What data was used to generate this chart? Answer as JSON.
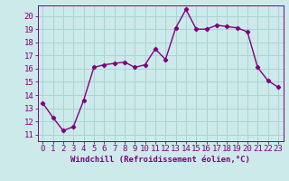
{
  "x": [
    0,
    1,
    2,
    3,
    4,
    5,
    6,
    7,
    8,
    9,
    10,
    11,
    12,
    13,
    14,
    15,
    16,
    17,
    18,
    19,
    20,
    21,
    22,
    23
  ],
  "y": [
    13.4,
    12.3,
    11.3,
    11.6,
    13.6,
    16.1,
    16.3,
    16.4,
    16.5,
    16.1,
    16.3,
    17.5,
    16.7,
    19.1,
    20.5,
    19.0,
    19.0,
    19.3,
    19.2,
    19.1,
    18.8,
    16.1,
    15.1,
    14.6
  ],
  "line_color": "#800080",
  "marker": "D",
  "marker_size": 2.2,
  "bg_color": "#cceaea",
  "grid_color": "#aad4d4",
  "xlabel": "Windchill (Refroidissement éolien,°C)",
  "ylim": [
    10.5,
    20.8
  ],
  "xlim": [
    -0.5,
    23.5
  ],
  "yticks": [
    11,
    12,
    13,
    14,
    15,
    16,
    17,
    18,
    19,
    20
  ],
  "xticks": [
    0,
    1,
    2,
    3,
    4,
    5,
    6,
    7,
    8,
    9,
    10,
    11,
    12,
    13,
    14,
    15,
    16,
    17,
    18,
    19,
    20,
    21,
    22,
    23
  ],
  "xlabel_fontsize": 6.5,
  "tick_fontsize": 6.5,
  "line_width": 1.0
}
